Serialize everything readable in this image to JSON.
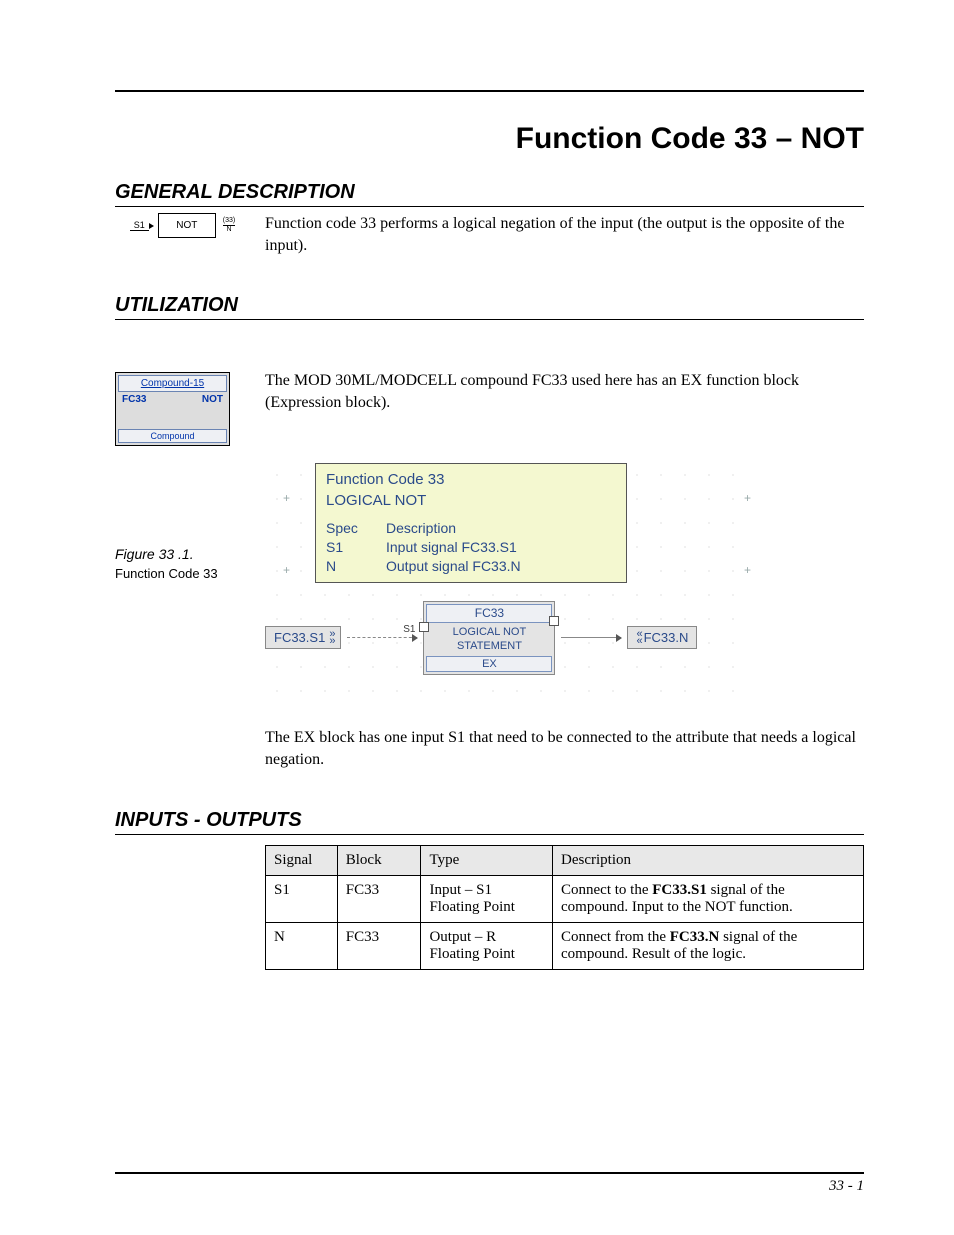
{
  "page": {
    "title": "Function Code 33 – NOT",
    "footer": "33 - 1"
  },
  "sections": {
    "general": {
      "heading": "GENERAL DESCRIPTION",
      "text": "Function code 33 performs a logical negation of the input (the output is the opposite of the input).",
      "symbol": {
        "s1": "S1",
        "label": "NOT",
        "code": "(33)",
        "out": "N"
      }
    },
    "utilization": {
      "heading": "UTILIZATION",
      "text": "The MOD 30ML/MODCELL compound FC33 used here has an EX function block (Expression block).",
      "compound_thumb": {
        "title": "Compound-15",
        "left": "FC33",
        "right": "NOT",
        "footer": "Compound"
      },
      "figure_caption": {
        "title": "Figure 33 .1.",
        "sub": "Function Code 33"
      },
      "diagram": {
        "info_title1": "Function Code 33",
        "info_title2": "LOGICAL NOT",
        "spec_header": {
          "c1": "Spec",
          "c2": "Description"
        },
        "specs": [
          {
            "c1": "S1",
            "c2": "Input signal FC33.S1"
          },
          {
            "c1": "N",
            "c2": "Output signal FC33.N"
          }
        ],
        "left_tag": "FC33.S1",
        "conn_label": "S1",
        "ex_block": {
          "hdr": "FC33",
          "line1": "LOGICAL NOT",
          "line2": "STATEMENT",
          "footer": "EX"
        },
        "right_tag": "FC33.N",
        "colors": {
          "info_bg": "#f4f8d0",
          "tag_bg": "#e4e4e4",
          "text": "#2a4a8a"
        }
      },
      "post_text": "The EX block has one input S1 that need to be connected to the attribute that needs a logical negation."
    },
    "io": {
      "heading": "INPUTS - OUTPUTS",
      "columns": [
        "Signal",
        "Block",
        "Type",
        "Description"
      ],
      "rows": [
        {
          "signal": "S1",
          "block": "FC33",
          "type": "Input – S1\nFloating Point",
          "desc_pre": "Connect to the ",
          "desc_bold": "FC33.S1",
          "desc_post": " signal of the compound. Input to the NOT function."
        },
        {
          "signal": "N",
          "block": "FC33",
          "type": "Output – R\nFloating Point",
          "desc_pre": "Connect from the ",
          "desc_bold": "FC33.N",
          "desc_post": " signal of the compound. Result of the logic."
        }
      ]
    }
  }
}
